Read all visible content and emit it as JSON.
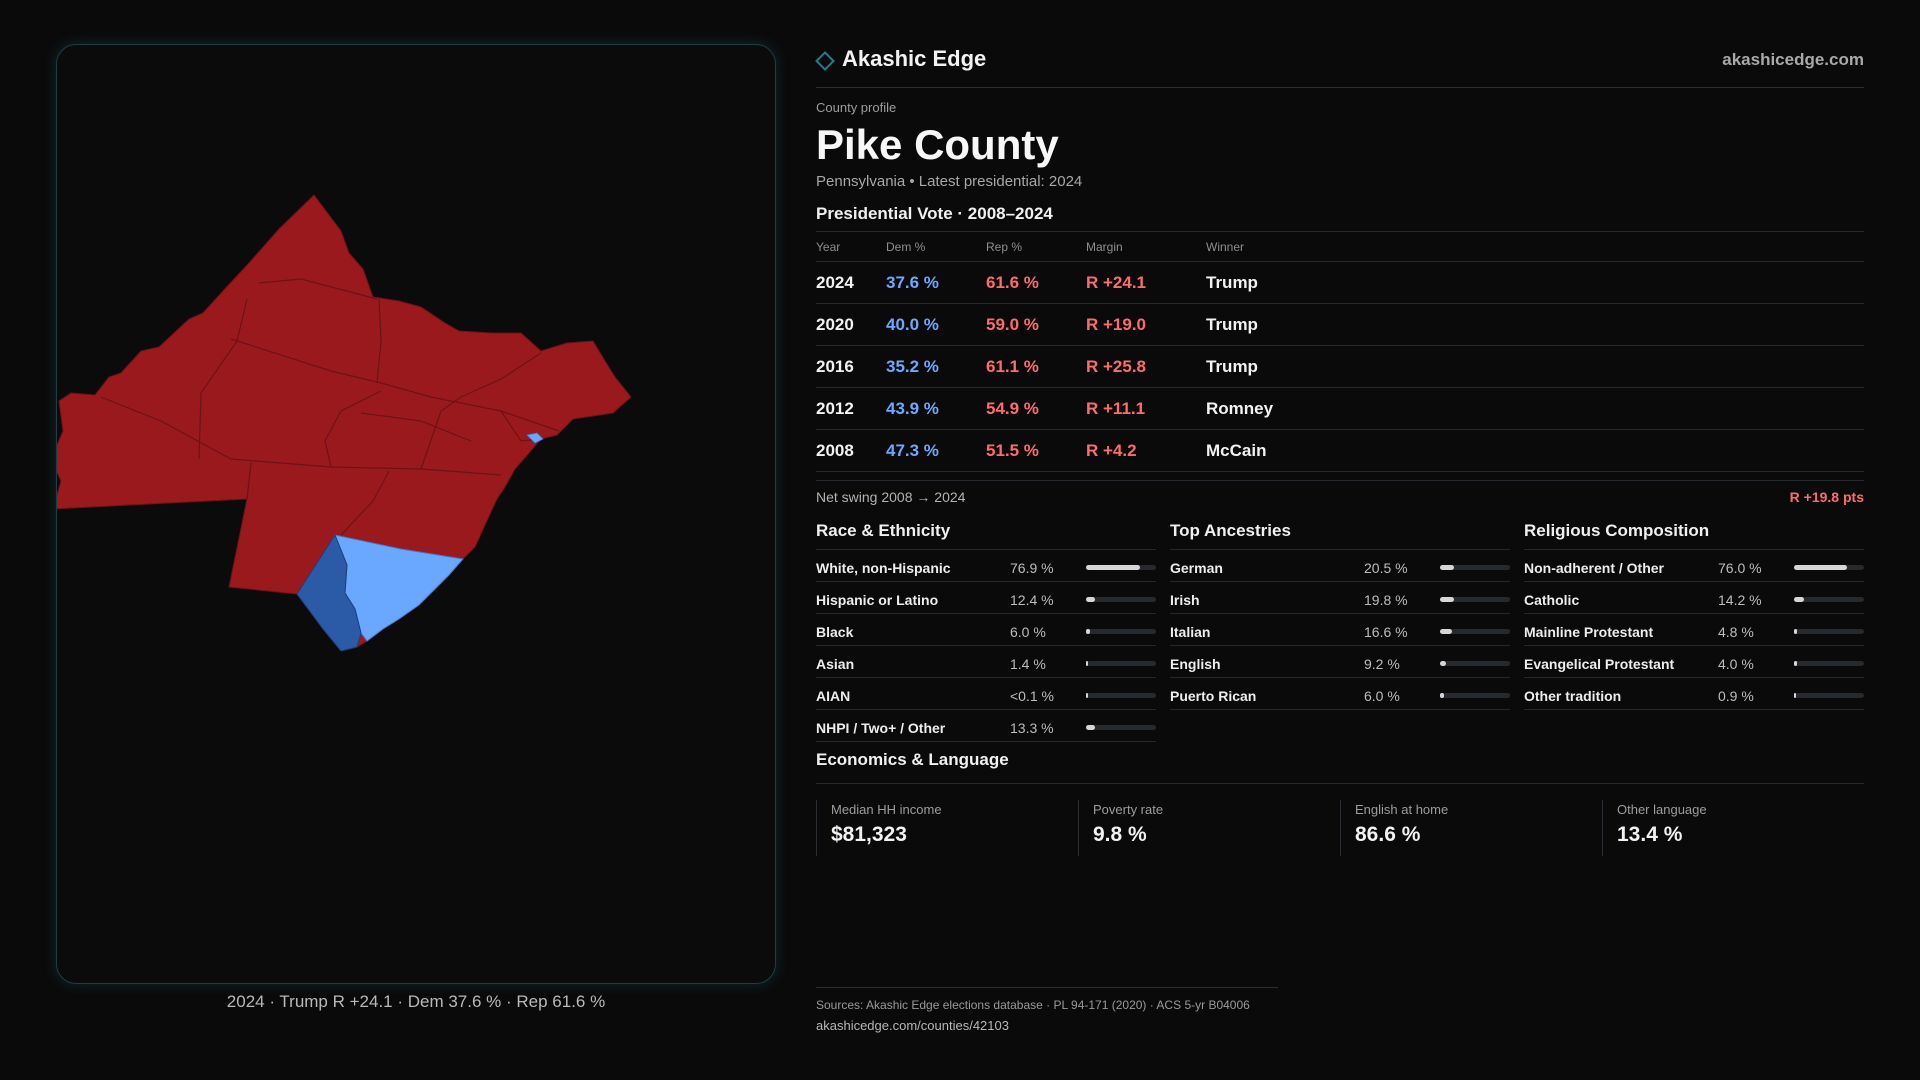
{
  "brand": {
    "name": "Akashic Edge",
    "url": "akashicedge.com"
  },
  "profile": {
    "eyebrow": "County profile",
    "county": "Pike County",
    "subtitle": "Pennsylvania • Latest presidential: 2024"
  },
  "vote": {
    "title": "Presidential Vote · 2008–2024",
    "headers": [
      "Year",
      "Dem %",
      "Rep %",
      "Margin",
      "Winner"
    ],
    "rows": [
      {
        "year": "2024",
        "dem": "37.6 %",
        "rep": "61.6 %",
        "margin": "R +24.1",
        "winner": "Trump"
      },
      {
        "year": "2020",
        "dem": "40.0 %",
        "rep": "59.0 %",
        "margin": "R +19.0",
        "winner": "Trump"
      },
      {
        "year": "2016",
        "dem": "35.2 %",
        "rep": "61.1 %",
        "margin": "R +25.8",
        "winner": "Trump"
      },
      {
        "year": "2012",
        "dem": "43.9 %",
        "rep": "54.9 %",
        "margin": "R +11.1",
        "winner": "Romney"
      },
      {
        "year": "2008",
        "dem": "47.3 %",
        "rep": "51.5 %",
        "margin": "R +4.2",
        "winner": "McCain"
      }
    ],
    "swing_label": "Net swing 2008 → 2024",
    "swing_value": "R +19.8 pts"
  },
  "race": {
    "title": "Race & Ethnicity",
    "items": [
      {
        "label": "White, non-Hispanic",
        "value": "76.9 %",
        "fraction": 0.769
      },
      {
        "label": "Hispanic or Latino",
        "value": "12.4 %",
        "fraction": 0.124
      },
      {
        "label": "Black",
        "value": "6.0 %",
        "fraction": 0.06
      },
      {
        "label": "Asian",
        "value": "1.4 %",
        "fraction": 0.014
      },
      {
        "label": "AIAN",
        "value": "<0.1 %",
        "fraction": 0.0
      },
      {
        "label": "NHPI / Two+ / Other",
        "value": "13.3 %",
        "fraction": 0.133
      }
    ]
  },
  "ancestry": {
    "title": "Top Ancestries",
    "items": [
      {
        "label": "German",
        "value": "20.5 %",
        "fraction": 0.205
      },
      {
        "label": "Irish",
        "value": "19.8 %",
        "fraction": 0.198
      },
      {
        "label": "Italian",
        "value": "16.6 %",
        "fraction": 0.166
      },
      {
        "label": "English",
        "value": "9.2 %",
        "fraction": 0.092
      },
      {
        "label": "Puerto Rican",
        "value": "6.0 %",
        "fraction": 0.06
      }
    ]
  },
  "religion": {
    "title": "Religious Composition",
    "items": [
      {
        "label": "Non-adherent / Other",
        "value": "76.0 %",
        "fraction": 0.76
      },
      {
        "label": "Catholic",
        "value": "14.2 %",
        "fraction": 0.142
      },
      {
        "label": "Mainline Protestant",
        "value": "4.8 %",
        "fraction": 0.048
      },
      {
        "label": "Evangelical Protestant",
        "value": "4.0 %",
        "fraction": 0.04
      },
      {
        "label": "Other tradition",
        "value": "0.9 %",
        "fraction": 0.009
      }
    ]
  },
  "economics": {
    "title": "Economics & Language",
    "items": [
      {
        "label": "Median HH income",
        "value": "$81,323"
      },
      {
        "label": "Poverty rate",
        "value": "9.8 %"
      },
      {
        "label": "English at home",
        "value": "86.6 %"
      },
      {
        "label": "Other language",
        "value": "13.4 %"
      }
    ]
  },
  "map": {
    "caption": "2024 · Trump R +24.1 · Dem 37.6 % · Rep 61.6 %",
    "colors": {
      "rep": "#99191d",
      "dem_dark": "#2b5aa6",
      "dem_light": "#6aa7ff",
      "border": "#6e1216"
    }
  },
  "sources": {
    "line": "Sources: Akashic Edge elections database · PL 94-171 (2020) · ACS 5-yr B04006",
    "url": "akashicedge.com/counties/42103"
  }
}
